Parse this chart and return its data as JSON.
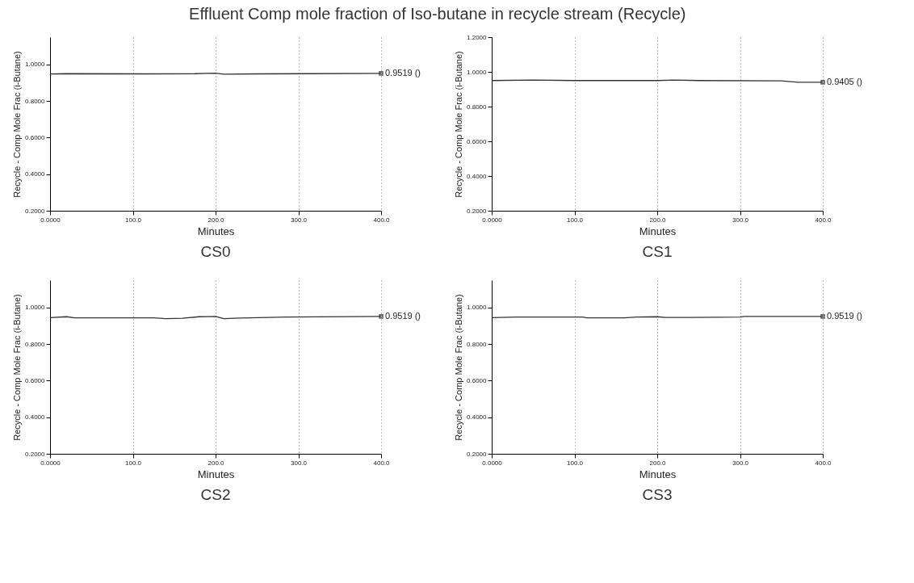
{
  "chart_data": [
    {
      "type": "line",
      "title": "CS0",
      "xlabel": "Minutes",
      "ylabel": "Recycle - Comp Mole Frac (i-Butane)",
      "annotations": [
        "Effluent Comp mole fraction of Iso-butane in recycle stream (Recycle)"
      ],
      "x": [
        0,
        20,
        115,
        175,
        200,
        210,
        250,
        310,
        400
      ],
      "series": [
        {
          "color": "#333333",
          "values": [
            0.948,
            0.95,
            0.949,
            0.95,
            0.953,
            0.947,
            0.949,
            0.95,
            0.9519
          ],
          "value_labels": [
            null,
            null,
            null,
            null,
            null,
            null,
            null,
            null,
            "0.9519 ()"
          ]
        }
      ],
      "xlim": [
        0,
        400
      ],
      "xticks": [
        {
          "value": 0,
          "label": "0.0000"
        },
        {
          "value": 100,
          "label": "100.0"
        },
        {
          "value": 200,
          "label": "200.0"
        },
        {
          "value": 300,
          "label": "300.0"
        },
        {
          "value": 400,
          "label": "400.0"
        }
      ],
      "ylim": [
        0.2,
        1.15
      ],
      "yticks": [
        {
          "value": 0.2,
          "label": "0.2000"
        },
        {
          "value": 0.4,
          "label": "0.4000"
        },
        {
          "value": 0.6,
          "label": "0.6000"
        },
        {
          "value": 0.8,
          "label": "0.8000"
        },
        {
          "value": 1.0,
          "label": "1.0000"
        }
      ],
      "grid": "x"
    },
    {
      "type": "line",
      "title": "CS1",
      "xlabel": "Minutes",
      "ylabel": "Recycle - Comp Mole Frac (i-Butane)",
      "x": [
        0,
        50,
        100,
        200,
        220,
        250,
        350,
        370,
        400
      ],
      "series": [
        {
          "color": "#333333",
          "values": [
            0.95,
            0.953,
            0.95,
            0.95,
            0.953,
            0.95,
            0.948,
            0.9405,
            0.9405
          ],
          "value_labels": [
            null,
            null,
            null,
            null,
            null,
            null,
            null,
            null,
            "0.9405 ()"
          ]
        }
      ],
      "xlim": [
        0,
        400
      ],
      "xticks": [
        {
          "value": 0,
          "label": "0.0000"
        },
        {
          "value": 100,
          "label": "100.0"
        },
        {
          "value": 200,
          "label": "200.0"
        },
        {
          "value": 300,
          "label": "300.0"
        },
        {
          "value": 400,
          "label": "400.0"
        }
      ],
      "ylim": [
        0.2,
        1.2
      ],
      "yticks": [
        {
          "value": 0.2,
          "label": "0.2000"
        },
        {
          "value": 0.4,
          "label": "0.4000"
        },
        {
          "value": 0.6,
          "label": "0.6000"
        },
        {
          "value": 0.8,
          "label": "0.8000"
        },
        {
          "value": 1.0,
          "label": "1.0000"
        },
        {
          "value": 1.2,
          "label": "1.2000"
        }
      ],
      "grid": "x"
    },
    {
      "type": "line",
      "title": "CS2",
      "xlabel": "Minutes",
      "ylabel": "Recycle - Comp Mole Frac (i-Butane)",
      "x": [
        0,
        20,
        30,
        125,
        140,
        160,
        180,
        200,
        210,
        230,
        285,
        400
      ],
      "series": [
        {
          "color": "#333333",
          "values": [
            0.945,
            0.95,
            0.944,
            0.944,
            0.94,
            0.942,
            0.95,
            0.952,
            0.94,
            0.943,
            0.948,
            0.9519
          ],
          "value_labels": [
            null,
            null,
            null,
            null,
            null,
            null,
            null,
            null,
            null,
            null,
            null,
            "0.9519 ()"
          ]
        }
      ],
      "xlim": [
        0,
        400
      ],
      "xticks": [
        {
          "value": 0,
          "label": "0.0000"
        },
        {
          "value": 100,
          "label": "100.0"
        },
        {
          "value": 200,
          "label": "200.0"
        },
        {
          "value": 300,
          "label": "300.0"
        },
        {
          "value": 400,
          "label": "400.0"
        }
      ],
      "ylim": [
        0.2,
        1.15
      ],
      "yticks": [
        {
          "value": 0.2,
          "label": "0.2000"
        },
        {
          "value": 0.4,
          "label": "0.4000"
        },
        {
          "value": 0.6,
          "label": "0.6000"
        },
        {
          "value": 0.8,
          "label": "0.8000"
        },
        {
          "value": 1.0,
          "label": "1.0000"
        }
      ],
      "grid": "x"
    },
    {
      "type": "line",
      "title": "CS3",
      "xlabel": "Minutes",
      "ylabel": "Recycle - Comp Mole Frac (i-Butane)",
      "x": [
        0,
        30,
        110,
        115,
        160,
        175,
        200,
        210,
        240,
        300,
        305,
        400
      ],
      "series": [
        {
          "color": "#333333",
          "values": [
            0.945,
            0.948,
            0.948,
            0.944,
            0.944,
            0.948,
            0.95,
            0.946,
            0.946,
            0.948,
            0.952,
            0.9519
          ],
          "value_labels": [
            null,
            null,
            null,
            null,
            null,
            null,
            null,
            null,
            null,
            null,
            null,
            "0.9519 ()"
          ]
        }
      ],
      "xlim": [
        0,
        400
      ],
      "xticks": [
        {
          "value": 0,
          "label": "0.0000"
        },
        {
          "value": 100,
          "label": "100.0"
        },
        {
          "value": 200,
          "label": "200.0"
        },
        {
          "value": 300,
          "label": "300.0"
        },
        {
          "value": 400,
          "label": "400.0"
        }
      ],
      "ylim": [
        0.2,
        1.15
      ],
      "yticks": [
        {
          "value": 0.2,
          "label": "0.2000"
        },
        {
          "value": 0.4,
          "label": "0.4000"
        },
        {
          "value": 0.6,
          "label": "0.6000"
        },
        {
          "value": 0.8,
          "label": "0.8000"
        },
        {
          "value": 1.0,
          "label": "1.0000"
        }
      ],
      "grid": "x"
    }
  ]
}
